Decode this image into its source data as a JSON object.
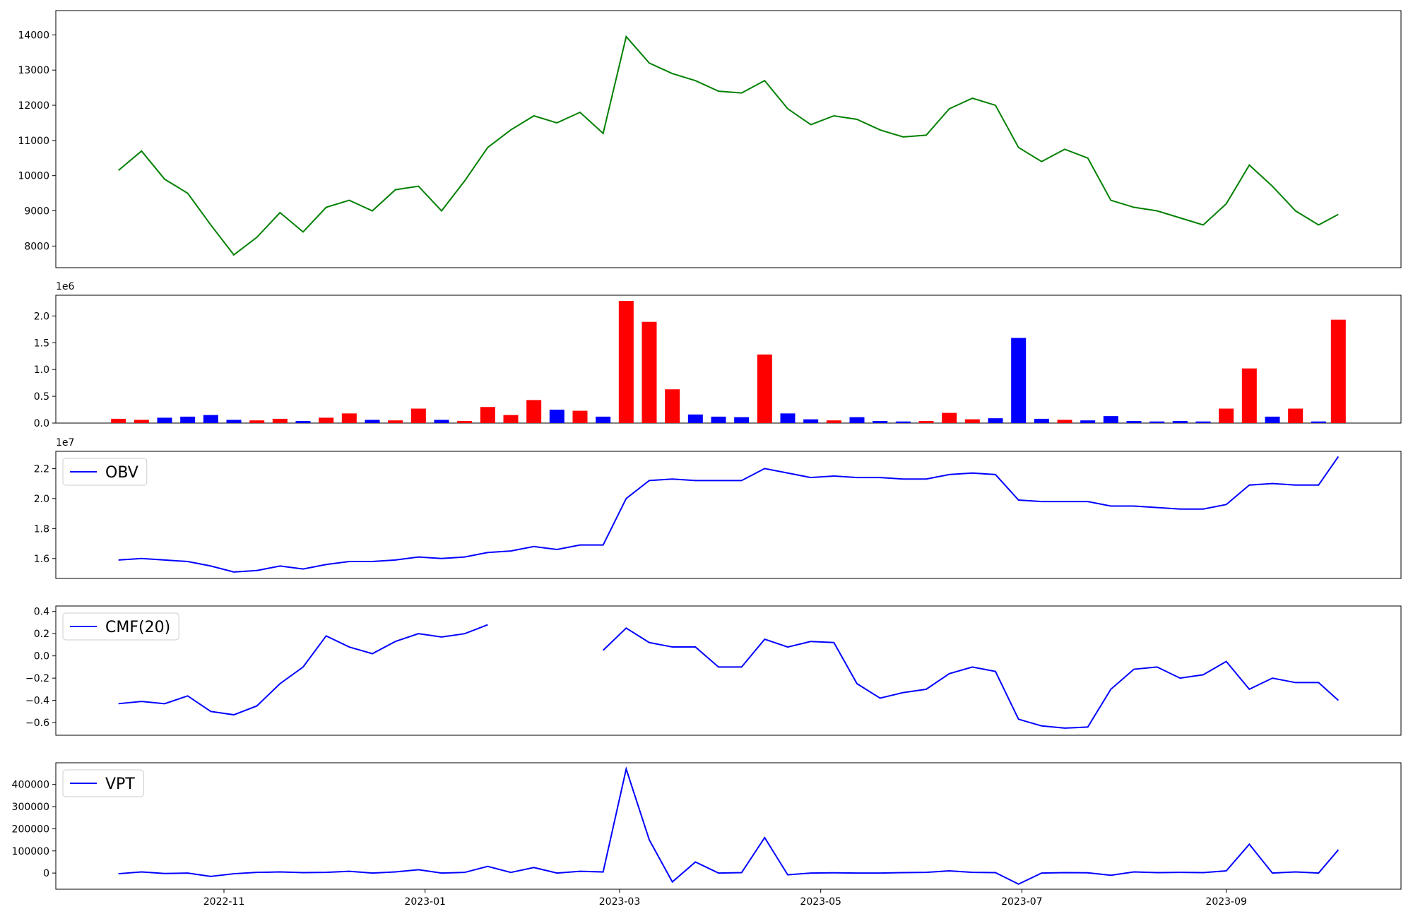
{
  "chart_data": [
    {
      "type": "line",
      "xlim": [
        "2022-09-11",
        "2023-10-24"
      ],
      "ylim": [
        7385,
        14690
      ],
      "yticks": [
        8000,
        9000,
        10000,
        11000,
        12000,
        13000,
        14000
      ],
      "x": [
        "2022-09-30",
        "2022-10-07",
        "2022-10-14",
        "2022-10-21",
        "2022-10-28",
        "2022-11-04",
        "2022-11-11",
        "2022-11-18",
        "2022-11-25",
        "2022-12-02",
        "2022-12-09",
        "2022-12-16",
        "2022-12-23",
        "2022-12-30",
        "2023-01-06",
        "2023-01-13",
        "2023-01-20",
        "2023-01-27",
        "2023-02-03",
        "2023-02-10",
        "2023-02-17",
        "2023-02-24",
        "2023-03-03",
        "2023-03-10",
        "2023-03-17",
        "2023-03-24",
        "2023-03-31",
        "2023-04-07",
        "2023-04-14",
        "2023-04-21",
        "2023-04-28",
        "2023-05-05",
        "2023-05-12",
        "2023-05-19",
        "2023-05-26",
        "2023-06-02",
        "2023-06-09",
        "2023-06-16",
        "2023-06-23",
        "2023-06-30",
        "2023-07-07",
        "2023-07-14",
        "2023-07-21",
        "2023-07-28",
        "2023-08-04",
        "2023-08-11",
        "2023-08-18",
        "2023-08-25",
        "2023-09-01",
        "2023-09-08",
        "2023-09-15",
        "2023-09-22",
        "2023-09-29",
        "2023-10-05"
      ],
      "series": [
        {
          "color": "#008000",
          "values": [
            10150,
            10700,
            9900,
            9500,
            8600,
            7750,
            8250,
            8950,
            8400,
            9100,
            9300,
            9000,
            9600,
            9700,
            9000,
            9850,
            10800,
            11300,
            11700,
            11500,
            11800,
            11200,
            13950,
            13200,
            12900,
            12700,
            12400,
            12350,
            12700,
            11900,
            11450,
            11700,
            11600,
            11300,
            11100,
            11150,
            11900,
            12200,
            12000,
            10800,
            10400,
            10750,
            10500,
            9300,
            9100,
            9000,
            8800,
            8600,
            9200,
            10300,
            9700,
            9000,
            8600,
            8900
          ]
        }
      ]
    },
    {
      "type": "bar",
      "xlim": [
        "2022-09-11",
        "2023-10-24"
      ],
      "ylim": [
        0,
        2387000
      ],
      "y_offset_label": "1e6",
      "yticks": [
        {
          "value": 0,
          "label": "0.0"
        },
        {
          "value": 500000,
          "label": "0.5"
        },
        {
          "value": 1000000,
          "label": "1.0"
        },
        {
          "value": 1500000,
          "label": "1.5"
        },
        {
          "value": 2000000,
          "label": "2.0"
        }
      ],
      "x": [
        "2022-09-30",
        "2022-10-07",
        "2022-10-14",
        "2022-10-21",
        "2022-10-28",
        "2022-11-04",
        "2022-11-11",
        "2022-11-18",
        "2022-11-25",
        "2022-12-02",
        "2022-12-09",
        "2022-12-16",
        "2022-12-23",
        "2022-12-30",
        "2023-01-06",
        "2023-01-13",
        "2023-01-20",
        "2023-01-27",
        "2023-02-03",
        "2023-02-10",
        "2023-02-17",
        "2023-02-24",
        "2023-03-03",
        "2023-03-10",
        "2023-03-17",
        "2023-03-24",
        "2023-03-31",
        "2023-04-07",
        "2023-04-14",
        "2023-04-21",
        "2023-04-28",
        "2023-05-05",
        "2023-05-12",
        "2023-05-19",
        "2023-05-26",
        "2023-06-02",
        "2023-06-09",
        "2023-06-16",
        "2023-06-23",
        "2023-06-30",
        "2023-07-07",
        "2023-07-14",
        "2023-07-21",
        "2023-07-28",
        "2023-08-04",
        "2023-08-11",
        "2023-08-18",
        "2023-08-25",
        "2023-09-01",
        "2023-09-08",
        "2023-09-15",
        "2023-09-22",
        "2023-09-29",
        "2023-10-05"
      ],
      "values": [
        80000,
        60000,
        100000,
        120000,
        150000,
        60000,
        50000,
        80000,
        40000,
        100000,
        180000,
        60000,
        50000,
        270000,
        60000,
        40000,
        300000,
        150000,
        430000,
        250000,
        230000,
        120000,
        2280000,
        1890000,
        630000,
        160000,
        120000,
        110000,
        1280000,
        180000,
        70000,
        50000,
        110000,
        40000,
        30000,
        40000,
        190000,
        70000,
        90000,
        1590000,
        80000,
        60000,
        50000,
        130000,
        40000,
        30000,
        40000,
        30000,
        270000,
        1020000,
        120000,
        270000,
        30000,
        1930000
      ],
      "colors": [
        "#ff0000",
        "#ff0000",
        "#0000ff",
        "#0000ff",
        "#0000ff",
        "#0000ff",
        "#ff0000",
        "#ff0000",
        "#0000ff",
        "#ff0000",
        "#ff0000",
        "#0000ff",
        "#ff0000",
        "#ff0000",
        "#0000ff",
        "#ff0000",
        "#ff0000",
        "#ff0000",
        "#ff0000",
        "#0000ff",
        "#ff0000",
        "#0000ff",
        "#ff0000",
        "#ff0000",
        "#ff0000",
        "#0000ff",
        "#0000ff",
        "#0000ff",
        "#ff0000",
        "#0000ff",
        "#0000ff",
        "#ff0000",
        "#0000ff",
        "#0000ff",
        "#0000ff",
        "#ff0000",
        "#ff0000",
        "#ff0000",
        "#0000ff",
        "#0000ff",
        "#0000ff",
        "#ff0000",
        "#0000ff",
        "#0000ff",
        "#0000ff",
        "#0000ff",
        "#0000ff",
        "#0000ff",
        "#ff0000",
        "#ff0000",
        "#0000ff",
        "#ff0000",
        "#0000ff",
        "#ff0000"
      ]
    },
    {
      "type": "line",
      "xlim": [
        "2022-09-11",
        "2023-10-24"
      ],
      "ylim": [
        14670000,
        23150000
      ],
      "y_offset_label": "1e7",
      "legend": "upper left",
      "yticks": [
        {
          "value": 16000000,
          "label": "1.6"
        },
        {
          "value": 18000000,
          "label": "1.8"
        },
        {
          "value": 20000000,
          "label": "2.0"
        },
        {
          "value": 22000000,
          "label": "2.2"
        }
      ],
      "x": [
        "2022-09-30",
        "2022-10-07",
        "2022-10-14",
        "2022-10-21",
        "2022-10-28",
        "2022-11-04",
        "2022-11-11",
        "2022-11-18",
        "2022-11-25",
        "2022-12-02",
        "2022-12-09",
        "2022-12-16",
        "2022-12-23",
        "2022-12-30",
        "2023-01-06",
        "2023-01-13",
        "2023-01-20",
        "2023-01-27",
        "2023-02-03",
        "2023-02-10",
        "2023-02-17",
        "2023-02-24",
        "2023-03-03",
        "2023-03-10",
        "2023-03-17",
        "2023-03-24",
        "2023-03-31",
        "2023-04-07",
        "2023-04-14",
        "2023-04-21",
        "2023-04-28",
        "2023-05-05",
        "2023-05-12",
        "2023-05-19",
        "2023-05-26",
        "2023-06-02",
        "2023-06-09",
        "2023-06-16",
        "2023-06-23",
        "2023-06-30",
        "2023-07-07",
        "2023-07-14",
        "2023-07-21",
        "2023-07-28",
        "2023-08-04",
        "2023-08-11",
        "2023-08-18",
        "2023-08-25",
        "2023-09-01",
        "2023-09-08",
        "2023-09-15",
        "2023-09-22",
        "2023-09-29",
        "2023-10-05"
      ],
      "series": [
        {
          "name": "OBV",
          "color": "#0000ff",
          "values": [
            15900000,
            16000000,
            15900000,
            15800000,
            15500000,
            15100000,
            15200000,
            15500000,
            15300000,
            15600000,
            15800000,
            15800000,
            15900000,
            16100000,
            16000000,
            16100000,
            16400000,
            16500000,
            16800000,
            16600000,
            16900000,
            16900000,
            20000000,
            21200000,
            21300000,
            21200000,
            21200000,
            21200000,
            22000000,
            21700000,
            21400000,
            21500000,
            21400000,
            21400000,
            21300000,
            21300000,
            21600000,
            21700000,
            21600000,
            19900000,
            19800000,
            19800000,
            19800000,
            19500000,
            19500000,
            19400000,
            19300000,
            19300000,
            19600000,
            20900000,
            21000000,
            20900000,
            20900000,
            22800000
          ]
        }
      ]
    },
    {
      "type": "line",
      "xlim": [
        "2022-09-11",
        "2023-10-24"
      ],
      "ylim": [
        -0.714,
        0.449
      ],
      "legend": "upper left",
      "yticks": [
        {
          "value": -0.6,
          "label": "−0.6"
        },
        {
          "value": -0.4,
          "label": "−0.4"
        },
        {
          "value": -0.2,
          "label": "−0.2"
        },
        {
          "value": 0,
          "label": "0.0"
        },
        0.2,
        0.4
      ],
      "x": [
        "2022-09-30",
        "2022-10-07",
        "2022-10-14",
        "2022-10-21",
        "2022-10-28",
        "2022-11-04",
        "2022-11-11",
        "2022-11-18",
        "2022-11-25",
        "2022-12-02",
        "2022-12-09",
        "2022-12-16",
        "2022-12-23",
        "2022-12-30",
        "2023-01-06",
        "2023-01-13",
        "2023-01-20",
        "2023-01-27",
        "2023-02-03",
        "2023-02-10",
        "2023-02-17",
        "2023-02-24",
        "2023-03-03",
        "2023-03-10",
        "2023-03-17",
        "2023-03-24",
        "2023-03-31",
        "2023-04-07",
        "2023-04-14",
        "2023-04-21",
        "2023-04-28",
        "2023-05-05",
        "2023-05-12",
        "2023-05-19",
        "2023-05-26",
        "2023-06-02",
        "2023-06-09",
        "2023-06-16",
        "2023-06-23",
        "2023-06-30",
        "2023-07-07",
        "2023-07-14",
        "2023-07-21",
        "2023-07-28",
        "2023-08-04",
        "2023-08-11",
        "2023-08-18",
        "2023-08-25",
        "2023-09-01",
        "2023-09-08",
        "2023-09-15",
        "2023-09-22",
        "2023-09-29",
        "2023-10-05"
      ],
      "series": [
        {
          "name": "CMF(20)",
          "color": "#0000ff",
          "values": [
            -0.43,
            -0.41,
            -0.43,
            -0.36,
            -0.5,
            -0.53,
            -0.45,
            -0.25,
            -0.1,
            0.18,
            0.08,
            0.02,
            0.13,
            0.2,
            0.17,
            0.2,
            0.28,
            null,
            null,
            null,
            null,
            0.05,
            0.25,
            0.12,
            0.08,
            0.08,
            -0.1,
            -0.1,
            0.15,
            0.08,
            0.13,
            0.12,
            -0.25,
            -0.38,
            -0.33,
            -0.3,
            -0.16,
            -0.1,
            -0.14,
            -0.57,
            -0.63,
            -0.65,
            -0.64,
            -0.3,
            -0.12,
            -0.1,
            -0.2,
            -0.17,
            -0.05,
            -0.3,
            -0.2,
            -0.24,
            -0.24,
            -0.4
          ]
        }
      ]
    },
    {
      "type": "line",
      "xlim": [
        "2022-09-11",
        "2023-10-24"
      ],
      "ylim": [
        -73000,
        498000
      ],
      "legend": "upper left",
      "yticks": [
        0,
        100000,
        200000,
        300000,
        400000
      ],
      "xticks": [
        {
          "value": "2022-11-01",
          "label": "2022-11"
        },
        {
          "value": "2023-01-01",
          "label": "2023-01"
        },
        {
          "value": "2023-03-01",
          "label": "2023-03"
        },
        {
          "value": "2023-05-01",
          "label": "2023-05"
        },
        {
          "value": "2023-07-01",
          "label": "2023-07"
        },
        {
          "value": "2023-09-01",
          "label": "2023-09"
        }
      ],
      "x": [
        "2022-09-30",
        "2022-10-07",
        "2022-10-14",
        "2022-10-21",
        "2022-10-28",
        "2022-11-04",
        "2022-11-11",
        "2022-11-18",
        "2022-11-25",
        "2022-12-02",
        "2022-12-09",
        "2022-12-16",
        "2022-12-23",
        "2022-12-30",
        "2023-01-06",
        "2023-01-13",
        "2023-01-20",
        "2023-01-27",
        "2023-02-03",
        "2023-02-10",
        "2023-02-17",
        "2023-02-24",
        "2023-03-03",
        "2023-03-10",
        "2023-03-17",
        "2023-03-24",
        "2023-03-31",
        "2023-04-07",
        "2023-04-14",
        "2023-04-21",
        "2023-04-28",
        "2023-05-05",
        "2023-05-12",
        "2023-05-19",
        "2023-05-26",
        "2023-06-02",
        "2023-06-09",
        "2023-06-16",
        "2023-06-23",
        "2023-06-30",
        "2023-07-07",
        "2023-07-14",
        "2023-07-21",
        "2023-07-28",
        "2023-08-04",
        "2023-08-11",
        "2023-08-18",
        "2023-08-25",
        "2023-09-01",
        "2023-09-08",
        "2023-09-15",
        "2023-09-22",
        "2023-09-29",
        "2023-10-05"
      ],
      "series": [
        {
          "name": "VPT",
          "color": "#0000ff",
          "values": [
            -3000,
            5000,
            -2000,
            0,
            -15000,
            -3000,
            3000,
            5000,
            2000,
            3000,
            8000,
            0,
            5000,
            15000,
            0,
            3000,
            30000,
            3000,
            25000,
            0,
            8000,
            5000,
            470000,
            150000,
            -40000,
            50000,
            0,
            2000,
            160000,
            -8000,
            0,
            1000,
            0,
            0,
            2000,
            3000,
            10000,
            3000,
            2000,
            -50000,
            0,
            2000,
            1000,
            -10000,
            5000,
            2000,
            3000,
            2000,
            10000,
            130000,
            0,
            5000,
            0,
            105000
          ]
        }
      ]
    }
  ]
}
